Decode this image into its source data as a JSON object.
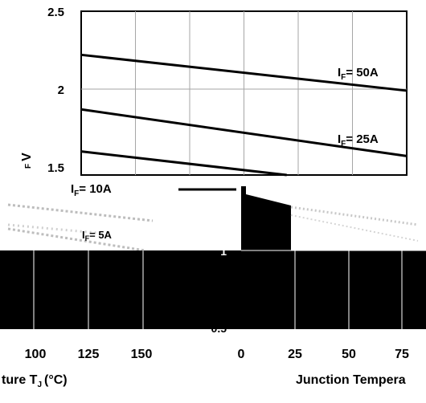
{
  "chart_data": {
    "type": "line",
    "y_label_fragment": "V",
    "y_label_paren": "( )",
    "y_label_sub": "F",
    "x_label_left_fragment": "ture T",
    "x_label_left_sub": "J",
    "x_label_left_unit": "(°C)",
    "x_label_right_fragment": "Junction Tempera",
    "y_ticks": [
      "2.5",
      "2",
      "1.5",
      "1",
      "0.5"
    ],
    "y_tick_values": [
      2.5,
      2.0,
      1.5,
      1.0,
      0.5
    ],
    "x_ticks_left": [
      "100",
      "125",
      "150"
    ],
    "x_ticks_right": [
      "0",
      "25",
      "50",
      "75"
    ],
    "grid": true,
    "series": [
      {
        "label_prefix": "I",
        "label_sub": "F",
        "label_suffix": "= 50A",
        "x": [
          0,
          150
        ],
        "y": [
          2.22,
          1.99
        ]
      },
      {
        "label_prefix": "I",
        "label_sub": "F",
        "label_suffix": "= 25A",
        "x": [
          0,
          150
        ],
        "y": [
          1.87,
          1.57
        ]
      },
      {
        "label_prefix": "I",
        "label_sub": "F",
        "label_suffix": "= 10A",
        "x": [
          0,
          150
        ],
        "y": [
          1.6,
          1.36
        ]
      },
      {
        "label_prefix": "I",
        "label_sub": "F",
        "label_suffix": "= 5A",
        "x": [
          0,
          150
        ],
        "y": [
          1.4,
          1.1
        ]
      }
    ]
  }
}
